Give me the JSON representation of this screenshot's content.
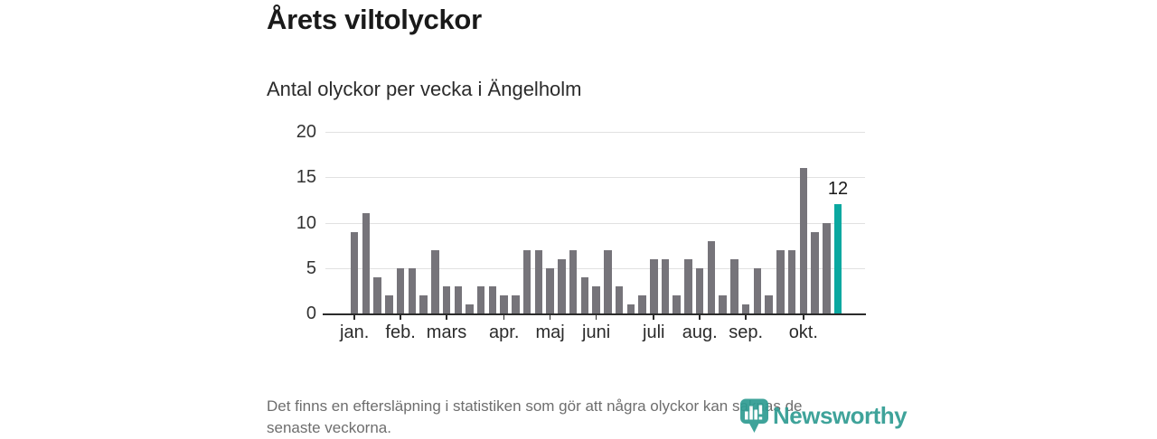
{
  "header": {
    "title": "Årets viltolyckor",
    "subtitle": "Antal olyckor per vecka i Ängelholm"
  },
  "chart_data": {
    "type": "bar",
    "title": "Årets viltolyckor",
    "subtitle": "Antal olyckor per vecka i Ängelholm",
    "x_unit": "vecka (week of year)",
    "values": [
      9,
      11,
      4,
      2,
      5,
      5,
      2,
      7,
      3,
      3,
      1,
      3,
      3,
      2,
      2,
      7,
      7,
      5,
      6,
      7,
      4,
      3,
      7,
      3,
      1,
      2,
      6,
      6,
      2,
      6,
      5,
      8,
      2,
      6,
      1,
      5,
      2,
      7,
      7,
      16,
      9,
      10,
      12
    ],
    "highlight_last_bar": true,
    "last_bar_value_label": "12",
    "ylim": [
      0,
      20
    ],
    "y_ticks": [
      0,
      5,
      10,
      15,
      20
    ],
    "grid": "horizontal",
    "month_ticks": [
      {
        "label": "jan.",
        "week": 1
      },
      {
        "label": "feb.",
        "week": 5
      },
      {
        "label": "mars",
        "week": 9
      },
      {
        "label": "apr.",
        "week": 14
      },
      {
        "label": "maj",
        "week": 18
      },
      {
        "label": "juni",
        "week": 22
      },
      {
        "label": "juli",
        "week": 27
      },
      {
        "label": "aug.",
        "week": 31
      },
      {
        "label": "sep.",
        "week": 35
      },
      {
        "label": "okt.",
        "week": 40
      }
    ],
    "colors": {
      "bar": "#76747a",
      "highlight": "#0ba8a0",
      "grid": "#e1e1e1",
      "axis": "#2b2b2b"
    }
  },
  "footer": {
    "lines": [
      "Det finns en eftersläpning i statistiken som gör att några olyckor kan saknas de",
      "senaste veckorna."
    ]
  },
  "logo": {
    "text": "Newsworthy",
    "color": "#2f9c92"
  }
}
